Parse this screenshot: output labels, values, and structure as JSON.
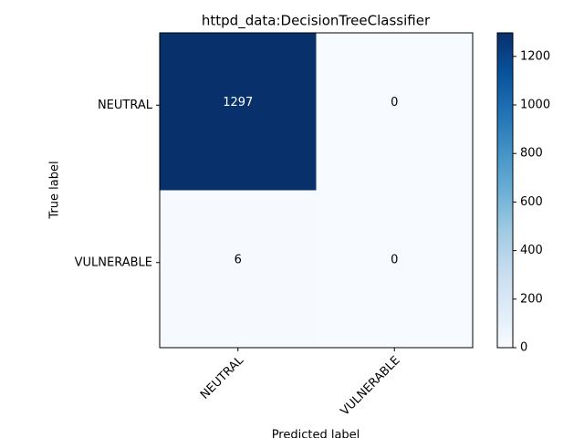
{
  "chart_data": {
    "type": "heatmap",
    "title": "httpd_data:DecisionTreeClassifier",
    "x_label": "Predicted label",
    "y_label": "True label",
    "x_categories": [
      "NEUTRAL",
      "VULNERABLE"
    ],
    "y_categories": [
      "NEUTRAL",
      "VULNERABLE"
    ],
    "values": [
      [
        1297,
        0
      ],
      [
        6,
        0
      ]
    ],
    "colormap": "Blues",
    "zlim": [
      0,
      1297
    ],
    "colorbar_ticks": [
      0,
      200,
      400,
      600,
      800,
      1000,
      1200
    ]
  }
}
